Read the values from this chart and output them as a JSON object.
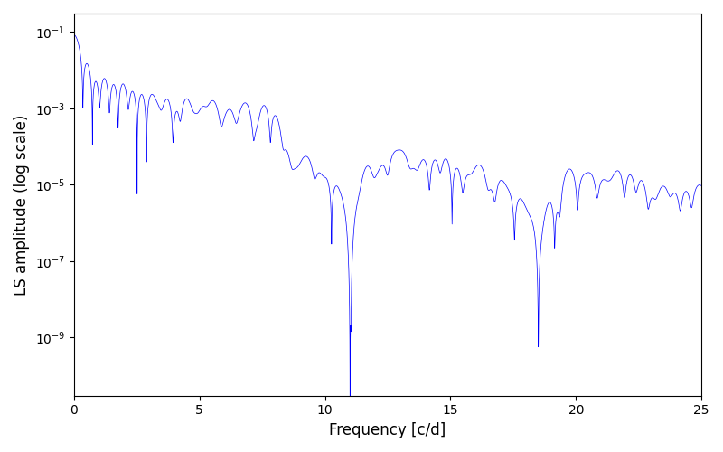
{
  "xlabel": "Frequency [c/d]",
  "ylabel": "LS amplitude (log scale)",
  "line_color": "#0000ff",
  "line_width": 0.5,
  "xlim": [
    0,
    25
  ],
  "ylim": [
    3e-11,
    0.3
  ],
  "yscale": "log",
  "figsize": [
    8.0,
    5.0
  ],
  "dpi": 100,
  "seed": 12345,
  "n_freq": 10000,
  "freq_max": 25.0,
  "ytick_locs": [
    1e-09,
    1e-07,
    1e-05,
    0.001,
    0.1
  ]
}
